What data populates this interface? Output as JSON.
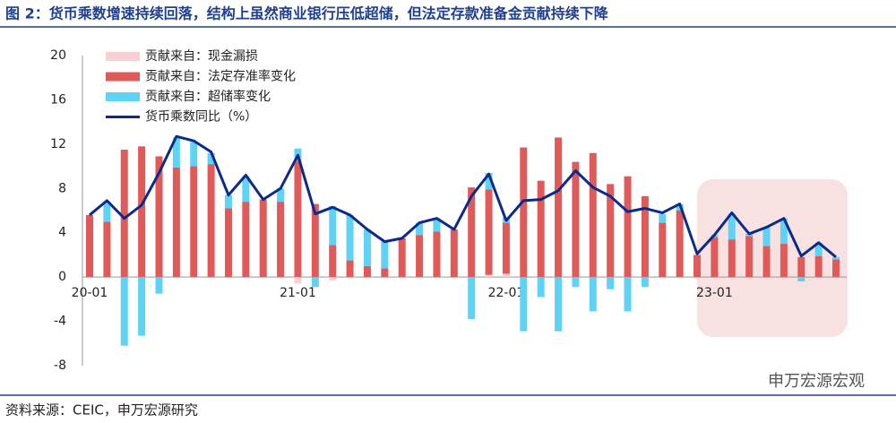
{
  "chart_data": {
    "type": "bar",
    "title": "图 2：货币乘数增速持续回落，结构上虽然商业银行压低超储，但法定存款准备金贡献持续下降",
    "source": "资料来源：CEIC，申万宏源研究",
    "watermark": "申万宏源宏观",
    "categories": [
      "20-01",
      null,
      null,
      null,
      null,
      null,
      null,
      null,
      null,
      null,
      null,
      null,
      "21-01",
      null,
      null,
      null,
      null,
      null,
      null,
      null,
      null,
      null,
      null,
      null,
      "22-01",
      null,
      null,
      null,
      null,
      null,
      null,
      null,
      null,
      null,
      null,
      null,
      "23-01",
      null,
      null,
      null,
      null,
      null,
      null,
      null
    ],
    "ylim": [
      -8,
      20
    ],
    "yticks": [
      20,
      16,
      12,
      8,
      4,
      0,
      -4,
      -8
    ],
    "grid": false,
    "series": [
      {
        "name": "贡献来自：现金漏损",
        "type": "bar",
        "color": "#f8cfd3",
        "values": [
          0,
          0,
          0,
          0,
          0,
          0,
          0,
          0,
          0,
          0,
          0,
          0,
          -0.6,
          0,
          -0.3,
          0,
          0,
          0,
          0,
          0,
          0,
          0,
          0,
          0.2,
          0.3,
          0,
          0,
          0,
          0,
          0,
          0,
          0,
          0,
          0,
          0,
          0,
          0,
          0,
          0,
          0,
          0,
          0,
          0,
          0
        ]
      },
      {
        "name": "贡献来自：法定存准率变化",
        "type": "bar",
        "color": "#e05a5a",
        "values": [
          5.6,
          5.0,
          11.5,
          11.8,
          10.9,
          9.9,
          10.0,
          10.2,
          6.2,
          6.8,
          7.0,
          6.8,
          10.5,
          6.6,
          2.9,
          1.5,
          1.0,
          0.8,
          3.5,
          3.8,
          4.1,
          4.3,
          8.1,
          7.7,
          4.6,
          11.7,
          8.7,
          12.6,
          10.4,
          11.2,
          8.4,
          9.1,
          7.3,
          4.9,
          6.0,
          2.0,
          3.6,
          3.4,
          3.7,
          2.8,
          3.0,
          1.8,
          1.9,
          1.6
        ]
      },
      {
        "name": "贡献来自：超储率变化",
        "type": "bar",
        "color": "#5fd3f5",
        "values": [
          0,
          1.8,
          -6.2,
          -5.3,
          -1.5,
          2.7,
          2.2,
          1.0,
          1.2,
          2.3,
          0,
          1.2,
          1.1,
          -0.9,
          3.5,
          4.1,
          3.3,
          2.4,
          0,
          1.1,
          1.2,
          0,
          -3.8,
          1.5,
          0.5,
          -4.9,
          -1.8,
          -4.9,
          -0.9,
          -3.1,
          -1.1,
          -3.1,
          -0.9,
          0.8,
          0.6,
          0,
          0.2,
          2.3,
          0.2,
          1.7,
          2.3,
          -0.4,
          1.2,
          0.2
        ]
      },
      {
        "name": "货币乘数同比（%）",
        "type": "line",
        "color": "#0b2a8a",
        "values": [
          5.6,
          6.9,
          5.3,
          6.5,
          9.4,
          12.7,
          12.3,
          11.3,
          7.4,
          9.2,
          7.0,
          8.0,
          11.0,
          5.7,
          6.3,
          5.6,
          4.3,
          3.2,
          3.5,
          4.9,
          5.3,
          4.3,
          7.3,
          9.3,
          5.1,
          6.9,
          7.0,
          7.8,
          9.6,
          8.1,
          7.3,
          5.9,
          6.2,
          5.8,
          6.6,
          2.1,
          3.8,
          5.8,
          3.9,
          4.5,
          5.3,
          1.9,
          3.1,
          1.8
        ]
      }
    ]
  }
}
